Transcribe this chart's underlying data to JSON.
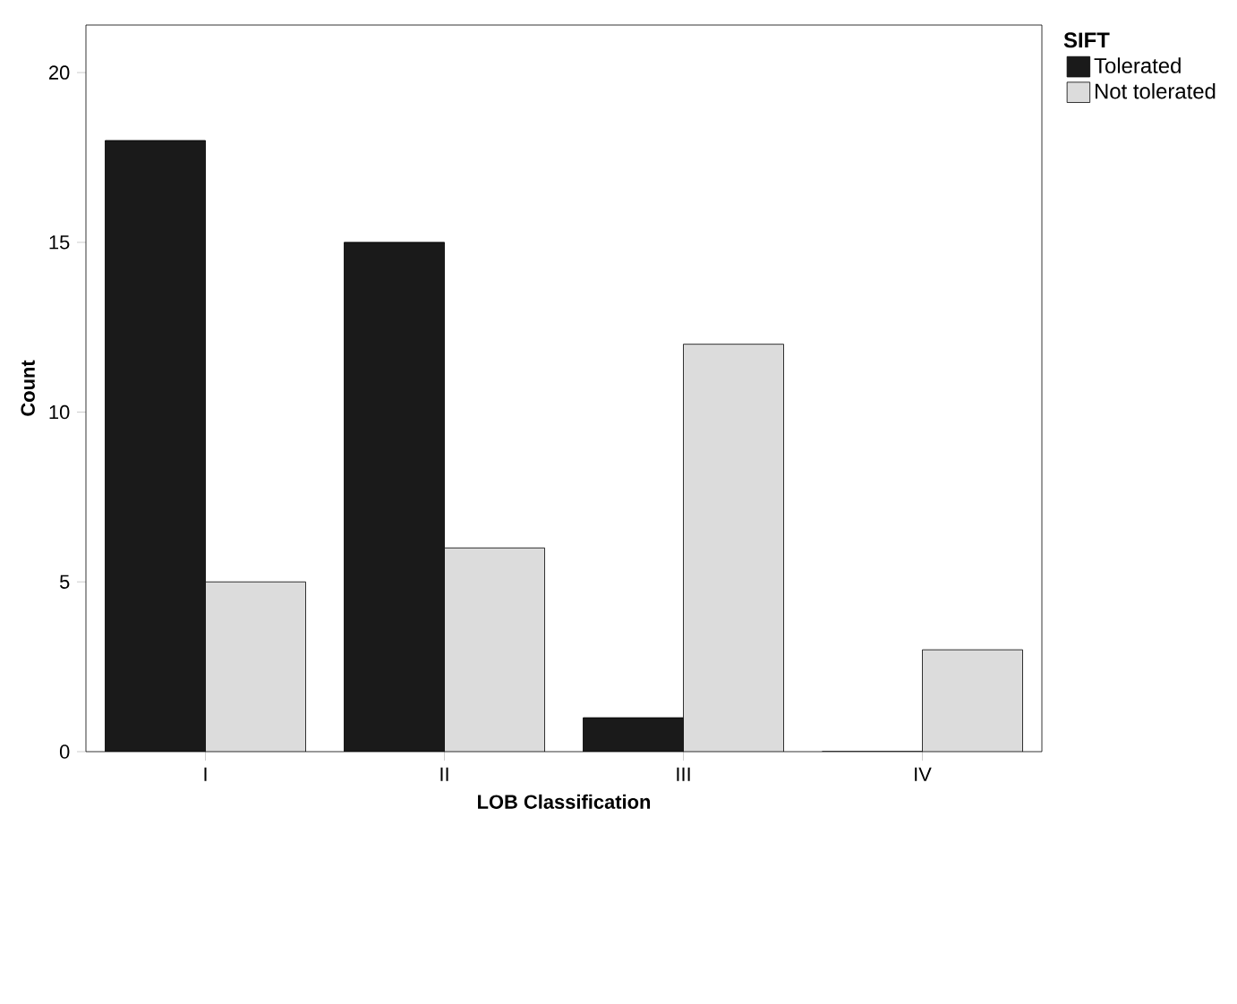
{
  "chart_data": {
    "type": "bar",
    "xlabel": "LOB Classification",
    "ylabel": "Count",
    "legend_title": "SIFT",
    "legend": "right",
    "categories": [
      "I",
      "II",
      "III",
      "IV"
    ],
    "series": [
      {
        "name": "Tolerated",
        "color": "#1a1a1a",
        "values": [
          18,
          15,
          1,
          0
        ]
      },
      {
        "name": "Not tolerated",
        "color": "#dcdcdc",
        "values": [
          5,
          6,
          12,
          3
        ]
      }
    ],
    "ylim": [
      0,
      21.4
    ],
    "yticks": [
      0,
      5,
      10,
      15,
      20
    ]
  }
}
